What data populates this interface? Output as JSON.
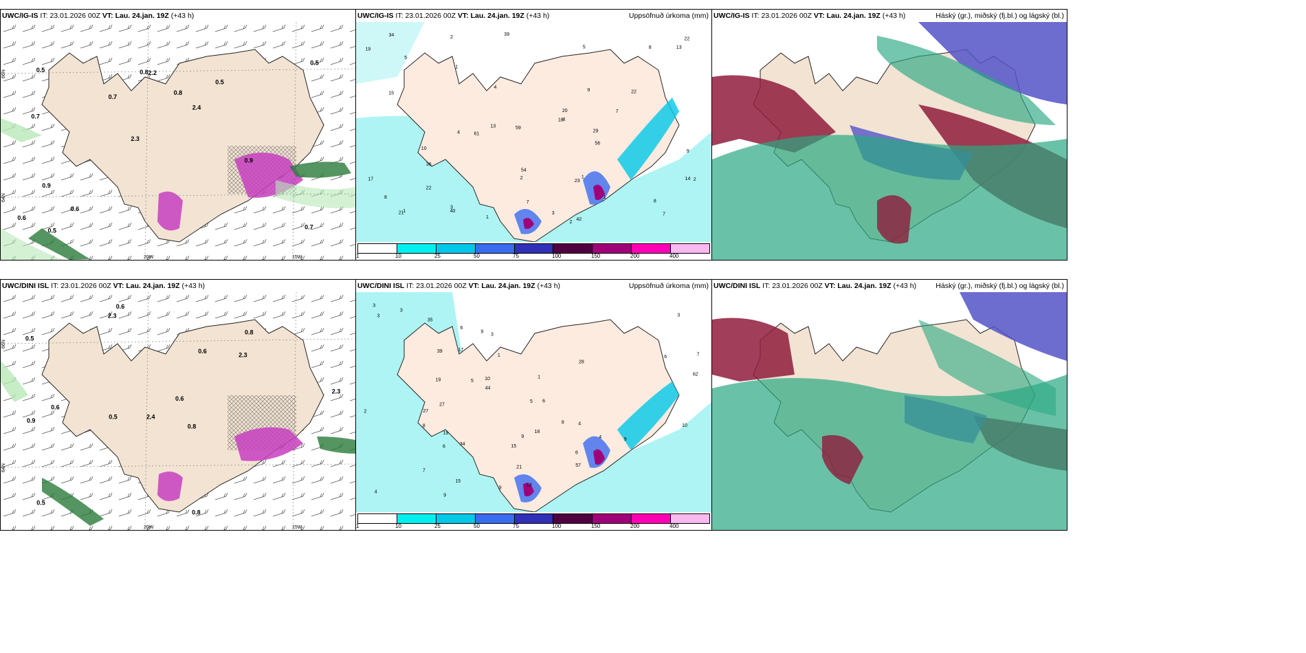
{
  "rows": [
    {
      "model": "UWC/IG-IS",
      "it_label": "IT:",
      "it_value": "23.01.2026 00Z",
      "vt_label": "VT:",
      "vt_value": "Lau. 24.jan. 19Z",
      "lead": "(+43 h)",
      "panel1": {
        "lat_labels": [
          "66N",
          "64N"
        ],
        "lon_labels": [
          "20W",
          "15W"
        ],
        "values": [
          "0.7",
          "0.7",
          "0.5",
          "2.3",
          "0.5",
          "0.5",
          "0.8",
          "0.8",
          "0.9",
          "0.7",
          "0.6",
          "0.6",
          "2.2",
          "2.4",
          "0.9",
          "0.5"
        ]
      },
      "panel2": {
        "title": "Uppsöfnuð úrkoma (mm)",
        "lat_labels": [
          "66N",
          "64N"
        ],
        "values": [
          "1",
          "2",
          "3",
          "1",
          "2",
          "5",
          "4",
          "7",
          "39",
          "4",
          "8",
          "7",
          "13",
          "2",
          "5",
          "18",
          "15",
          "40",
          "61",
          "19",
          "23",
          "22",
          "20",
          "21",
          "22",
          "10",
          "17",
          "36",
          "34",
          "56",
          "59",
          "42",
          "54",
          "13",
          "22",
          "29",
          "14",
          "8",
          "9",
          "8",
          "8",
          "7",
          "2",
          "1",
          "1",
          "1",
          "9",
          "3"
        ]
      },
      "panel3": {
        "title": "Háský (gr.), miðský (fj.bl.) og lágský (bl.)"
      }
    },
    {
      "model": "UWC/DINI ISL",
      "it_label": "IT:",
      "it_value": "23.01.2026 00Z",
      "vt_label": "VT:",
      "vt_value": "Lau. 24.jan. 19Z",
      "lead": "(+43 h)",
      "panel1": {
        "lat_labels": [
          "66N",
          "64N"
        ],
        "lon_labels": [
          "20W",
          "15W"
        ],
        "values": [
          "0.6",
          "0.8",
          "2.3",
          "2.4",
          "0.8",
          "0.6",
          "0.5",
          "2.3",
          "0.9",
          "0.6",
          "0.6",
          "0.5",
          "2.3",
          "0.5",
          "0.8"
        ]
      },
      "panel2": {
        "title": "Uppsöfnuð úrkoma (mm)",
        "lat_labels": [
          "66N",
          "64N"
        ],
        "values": [
          "3",
          "3",
          "2",
          "3",
          "7",
          "6",
          "3",
          "34",
          "4",
          "4",
          "6",
          "6",
          "9",
          "8",
          "9",
          "5",
          "15",
          "7",
          "17",
          "10",
          "62",
          "21",
          "15",
          "27",
          "27",
          "18",
          "19",
          "9",
          "9",
          "9",
          "8",
          "6",
          "6",
          "10",
          "5",
          "19",
          "35",
          "44",
          "57",
          "28",
          "39",
          "13",
          "4",
          "1",
          "3",
          "1"
        ]
      },
      "panel3": {
        "title": "Háský (gr.), miðský (fj.bl.) og lágský (bl.)"
      }
    }
  ],
  "colorbar": {
    "labels": [
      "1",
      "10",
      "25",
      "50",
      "75",
      "100",
      "150",
      "200",
      "400"
    ],
    "colors": [
      "#ffffff",
      "#00f0f0",
      "#00c8e8",
      "#3a6cf0",
      "#3030b8",
      "#500040",
      "#a00078",
      "#ff00b4",
      "#f8b8f0"
    ]
  },
  "colors": {
    "land": "#f2e3d3",
    "sea_light": "#aef4f4",
    "cloud_high": "#2aa882",
    "cloud_mid": "#5454c8",
    "cloud_low": "#901c3c",
    "precip_green": "#b8e8b8",
    "precip_purple": "#c840c0"
  }
}
